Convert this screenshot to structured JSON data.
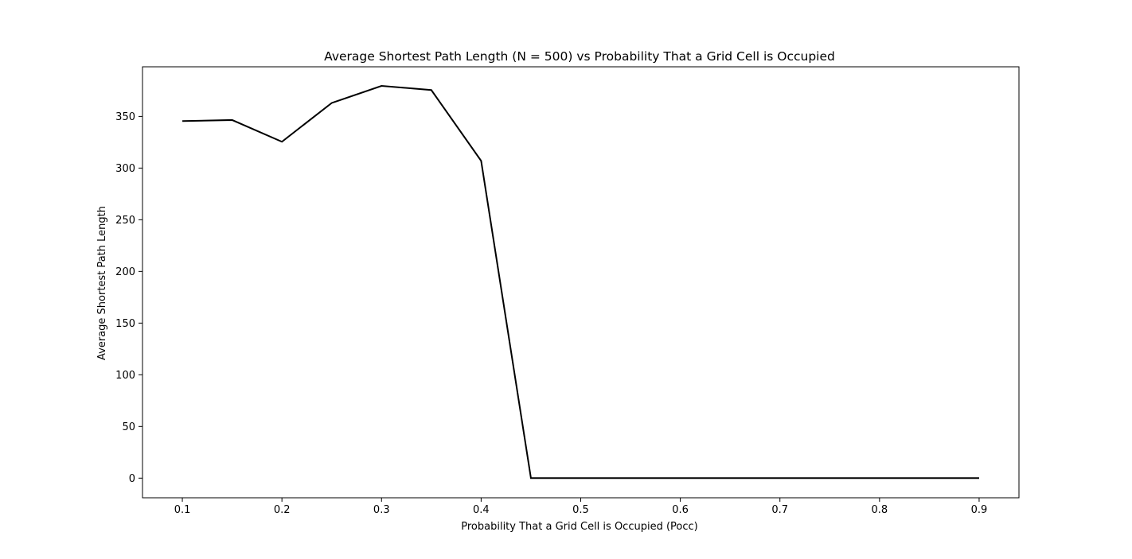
{
  "chart_data": {
    "type": "line",
    "title": "Average Shortest Path Length (N = 500) vs Probability That a Grid Cell is Occupied",
    "xlabel": "Probability That a Grid Cell is Occupied (Pocc)",
    "ylabel": "Average Shortest Path Length",
    "xlim": [
      0.06,
      0.94
    ],
    "ylim": [
      -19,
      398
    ],
    "xticks": [
      0.1,
      0.2,
      0.3,
      0.4,
      0.5,
      0.6,
      0.7,
      0.8,
      0.9
    ],
    "xtick_labels": [
      "0.1",
      "0.2",
      "0.3",
      "0.4",
      "0.5",
      "0.6",
      "0.7",
      "0.8",
      "0.9"
    ],
    "yticks": [
      0,
      50,
      100,
      150,
      200,
      250,
      300,
      350
    ],
    "ytick_labels": [
      "0",
      "50",
      "100",
      "150",
      "200",
      "250",
      "300",
      "350"
    ],
    "grid": false,
    "series": [
      {
        "color": "#000000",
        "x": [
          0.1,
          0.15,
          0.2,
          0.25,
          0.3,
          0.35,
          0.4,
          0.45,
          0.5,
          0.55,
          0.6,
          0.65,
          0.7,
          0.75,
          0.8,
          0.85,
          0.9
        ],
        "y": [
          345.5,
          346.5,
          325.5,
          363,
          379.5,
          375.5,
          307,
          0,
          0,
          0,
          0,
          0,
          0,
          0,
          0,
          0,
          0
        ]
      }
    ]
  }
}
